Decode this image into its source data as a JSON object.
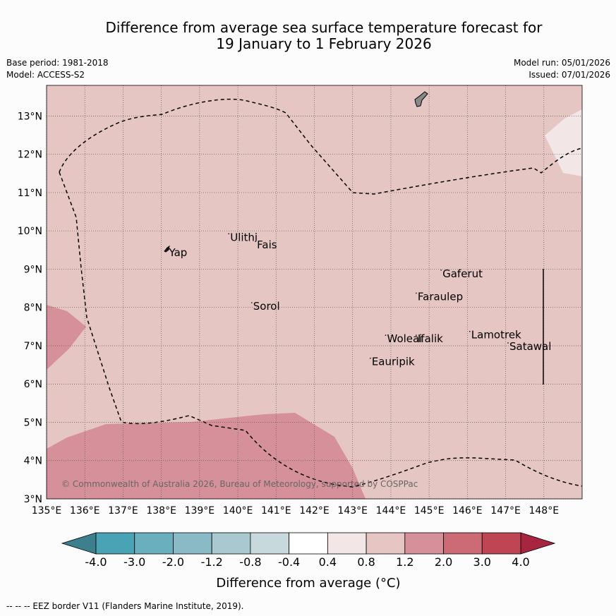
{
  "title": {
    "line1": "Difference from average sea surface temperature forecast for",
    "line2": "19 January to 1 February 2026"
  },
  "meta": {
    "base_period": "Base period: 1981-2018",
    "model": "Model: ACCESS-S2",
    "model_run": "Model run: 05/01/2026",
    "issued": "Issued: 07/01/2026"
  },
  "map": {
    "lon_range": [
      135,
      149
    ],
    "lat_range": [
      3,
      13.8
    ],
    "lon_ticks": [
      "135°E",
      "136°E",
      "137°E",
      "138°E",
      "139°E",
      "140°E",
      "141°E",
      "142°E",
      "143°E",
      "144°E",
      "145°E",
      "146°E",
      "147°E",
      "148°E"
    ],
    "lat_ticks": [
      "3°N",
      "4°N",
      "5°N",
      "6°N",
      "7°N",
      "8°N",
      "9°N",
      "10°N",
      "11°N",
      "12°N",
      "13°N"
    ],
    "places": [
      {
        "name": "Yap",
        "lon": 138.2,
        "lat": 9.45
      },
      {
        "name": "Ulithi",
        "lon": 139.8,
        "lat": 9.85
      },
      {
        "name": "Fais",
        "lon": 140.5,
        "lat": 9.65
      },
      {
        "name": "Gaferut",
        "lon": 145.35,
        "lat": 8.9
      },
      {
        "name": "Faraulep",
        "lon": 144.7,
        "lat": 8.3
      },
      {
        "name": "Sorol",
        "lon": 140.4,
        "lat": 8.05
      },
      {
        "name": "Woleai",
        "lon": 143.9,
        "lat": 7.2
      },
      {
        "name": "Ifalik",
        "lon": 144.7,
        "lat": 7.2
      },
      {
        "name": "Lamotrek",
        "lon": 146.1,
        "lat": 7.3
      },
      {
        "name": "Satawal",
        "lon": 147.1,
        "lat": 7.0
      },
      {
        "name": "Eauripik",
        "lon": 143.5,
        "lat": 6.6
      }
    ],
    "copyright": "© Commonwealth of Australia 2026, Bureau of Meteorology, supported by COSPPac",
    "background_color": "#e6c6c3"
  },
  "colorbar": {
    "tick_labels": [
      "-4.0",
      "-3.0",
      "-2.0",
      "-1.2",
      "-0.8",
      "-0.4",
      "0.4",
      "0.8",
      "1.2",
      "2.0",
      "3.0",
      "4.0"
    ],
    "colors": [
      "#4aa3b5",
      "#6aafbd",
      "#89bac6",
      "#a9c8cf",
      "#c8d9dd",
      "#ffffff",
      "#f2e6e6",
      "#e6c6c3",
      "#d6909a",
      "#cc6a76",
      "#bf4555"
    ],
    "under_color": "#3d7f8c",
    "over_color": "#a82540",
    "label": "Difference from average (°C)"
  },
  "footer": "-- -- -- EEZ border V11 (Flanders Marine Institute, 2019)."
}
